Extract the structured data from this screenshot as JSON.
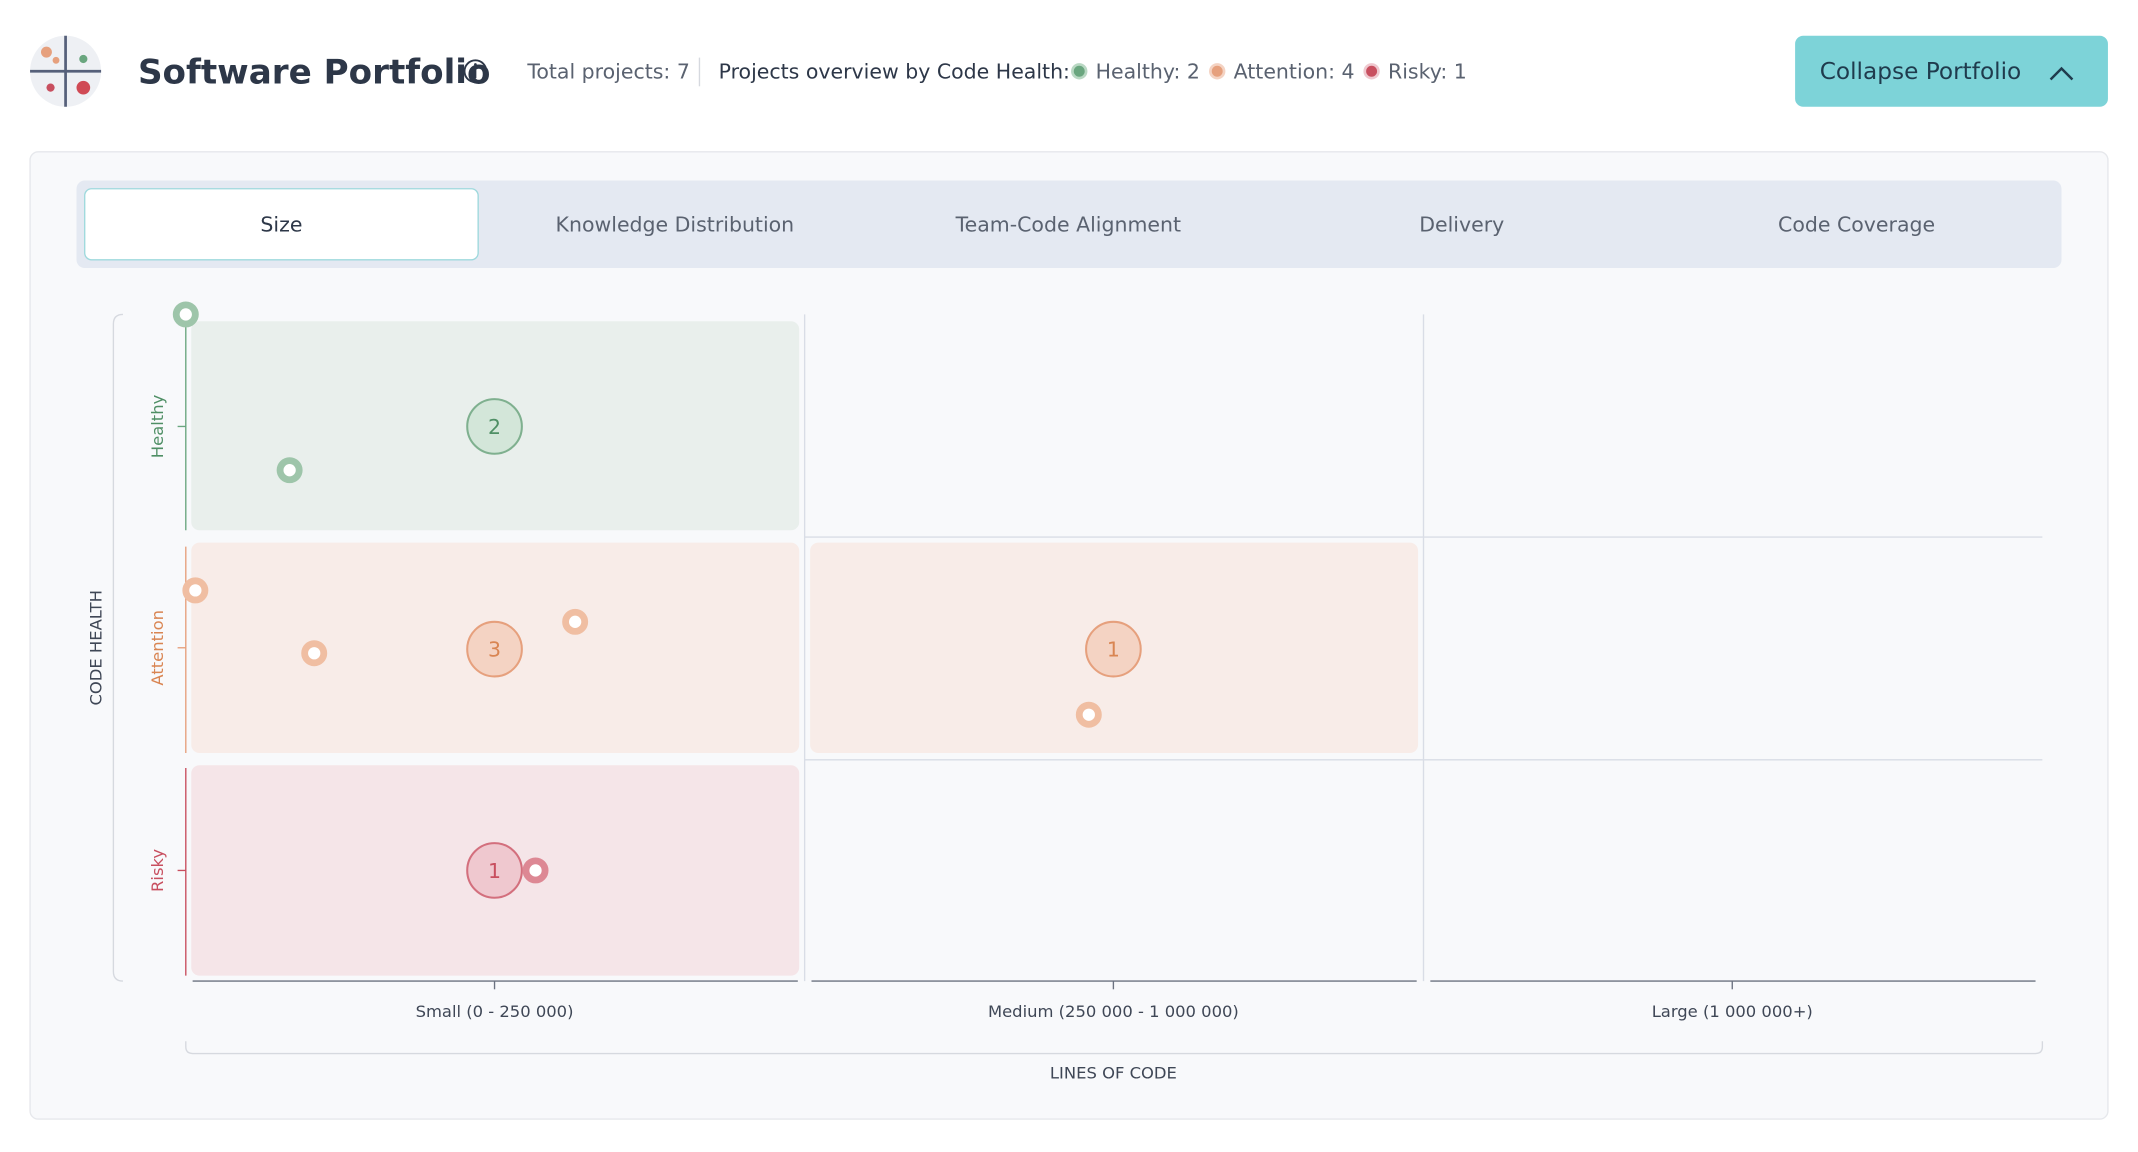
{
  "header": {
    "title": "Software Portfolio",
    "total": "Total projects: 7",
    "overview_label": "Projects overview by Code Health:",
    "legend": [
      "Healthy: 2",
      "Attention: 4",
      "Risky: 1"
    ],
    "collapse_button": "Collapse Portfolio"
  },
  "tabs": [
    "Size",
    "Knowledge Distribution",
    "Team-Code Alignment",
    "Delivery",
    "Code Coverage"
  ],
  "matrix": {
    "y_title": "CODE HEALTH",
    "x_title": "LINES OF CODE",
    "rows": [
      "Healthy",
      "Attention",
      "Risky"
    ],
    "columns": [
      "Small (0 - 250 000)",
      "Medium (250 000 - 1 000 000)",
      "Large (1 000 000+)"
    ],
    "bubbles": [
      2,
      3,
      1,
      1
    ]
  }
}
